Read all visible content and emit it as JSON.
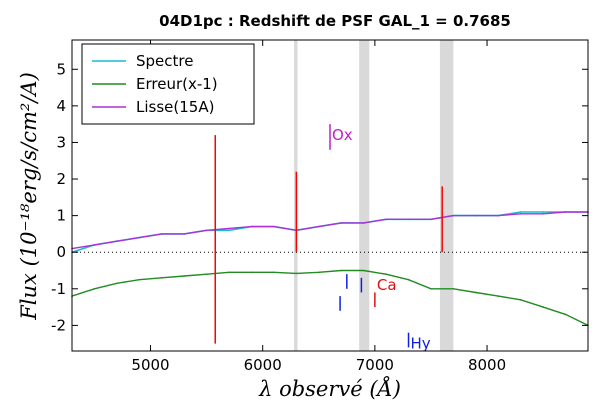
{
  "chart_data": {
    "type": "line",
    "title": "04D1pc : Redshift de PSF GAL_1 = 0.7685",
    "xlabel": "λ observé (Å)",
    "ylabel": "Flux (10⁻¹⁸erg/s/cm²/A)",
    "xlim": [
      4300,
      8900
    ],
    "ylim": [
      -2.7,
      5.8
    ],
    "xticks": [
      "5000",
      "6000",
      "7000",
      "8000"
    ],
    "yticks": [
      "-2",
      "-1",
      "0",
      "1",
      "2",
      "3",
      "4",
      "5"
    ],
    "legend_position": "top-left",
    "series": [
      {
        "name": "Spectre",
        "color": "#17becf",
        "x": [
          4300,
          4500,
          4700,
          4900,
          5100,
          5300,
          5500,
          5700,
          5900,
          6100,
          6300,
          6500,
          6700,
          6900,
          7100,
          7300,
          7500,
          7700,
          7900,
          8100,
          8300,
          8500,
          8700,
          8900
        ],
        "values": [
          0.0,
          0.2,
          0.3,
          0.4,
          0.5,
          0.5,
          0.6,
          0.6,
          0.7,
          0.7,
          0.6,
          0.7,
          0.8,
          0.8,
          0.9,
          0.9,
          0.9,
          1.0,
          1.0,
          1.0,
          1.1,
          1.1,
          1.1,
          1.1
        ]
      },
      {
        "name": "Erreur(x-1)",
        "color": "#228b22",
        "x": [
          4300,
          4500,
          4700,
          4900,
          5100,
          5300,
          5500,
          5700,
          5900,
          6100,
          6300,
          6500,
          6700,
          6900,
          7100,
          7300,
          7500,
          7700,
          7900,
          8100,
          8300,
          8500,
          8700,
          8900
        ],
        "values": [
          -1.2,
          -1.0,
          -0.85,
          -0.75,
          -0.7,
          -0.65,
          -0.6,
          -0.55,
          -0.55,
          -0.55,
          -0.58,
          -0.55,
          -0.5,
          -0.5,
          -0.6,
          -0.75,
          -1.0,
          -1.0,
          -1.1,
          -1.2,
          -1.3,
          -1.5,
          -1.7,
          -2.0
        ]
      },
      {
        "name": "Lisse(15A)",
        "color": "#b02fd8",
        "x": [
          4300,
          4500,
          4700,
          4900,
          5100,
          5300,
          5500,
          5700,
          5900,
          6100,
          6300,
          6500,
          6700,
          6900,
          7100,
          7300,
          7500,
          7700,
          7900,
          8100,
          8300,
          8500,
          8700,
          8900
        ],
        "values": [
          0.1,
          0.2,
          0.3,
          0.4,
          0.5,
          0.5,
          0.6,
          0.65,
          0.7,
          0.7,
          0.6,
          0.7,
          0.8,
          0.8,
          0.9,
          0.9,
          0.9,
          1.0,
          1.0,
          1.0,
          1.05,
          1.05,
          1.1,
          1.1
        ]
      }
    ],
    "zero_line": 0,
    "shaded_bands": [
      {
        "x0": 6280,
        "x1": 6310,
        "color": "#d9d9d9"
      },
      {
        "x0": 6860,
        "x1": 6950,
        "color": "#d9d9d9"
      },
      {
        "x0": 7580,
        "x1": 7700,
        "color": "#d9d9d9"
      }
    ],
    "red_spikes": [
      {
        "x": 5577,
        "y0": -2.5,
        "y1": 3.2
      },
      {
        "x": 6300,
        "y0": 0.0,
        "y1": 2.2
      },
      {
        "x": 7600,
        "y0": 0.0,
        "y1": 1.8
      }
    ],
    "annotations": [
      {
        "text": "Ox",
        "x": 6600,
        "y": 3.2,
        "color": "#c020c0",
        "tick_y0": 2.8,
        "tick_y1": 3.5
      },
      {
        "text": "Ca",
        "x": 7000,
        "y": -0.9,
        "color": "#e01010",
        "tick_y0": -1.5,
        "tick_y1": -1.1
      },
      {
        "text": "Hy",
        "x": 7300,
        "y": -2.5,
        "color": "#1020e0",
        "tick_y0": -2.6,
        "tick_y1": -2.2
      }
    ],
    "blue_ticks": [
      {
        "x": 6690,
        "y0": -1.6,
        "y1": -1.2
      },
      {
        "x": 6750,
        "y0": -1.0,
        "y1": -0.6
      },
      {
        "x": 6880,
        "y0": -1.1,
        "y1": -0.7
      }
    ]
  }
}
